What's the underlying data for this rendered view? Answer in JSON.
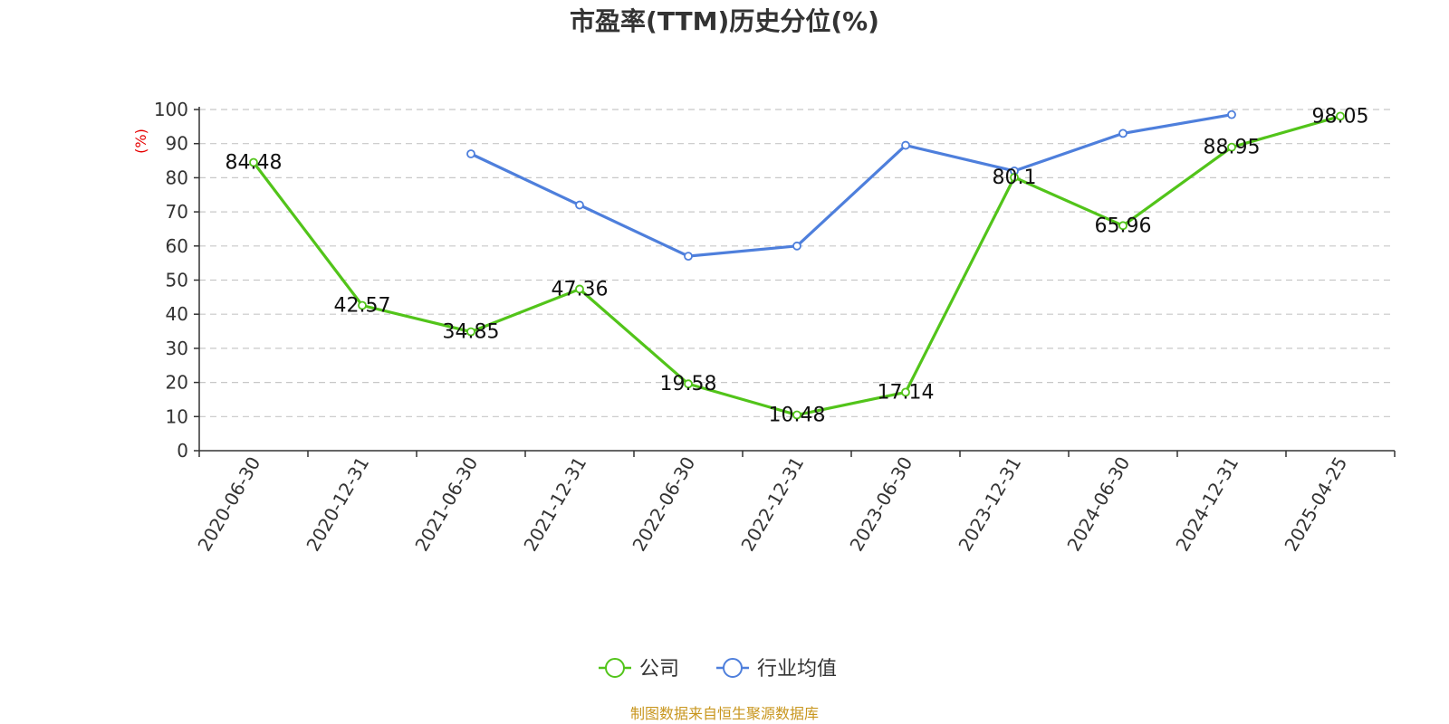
{
  "chart_data": {
    "type": "line",
    "title": "市盈率(TTM)历史分位(%)",
    "ylabel": "(%)",
    "xlabel": "",
    "ylim": [
      0,
      100
    ],
    "yticks": [
      0,
      10,
      20,
      30,
      40,
      50,
      60,
      70,
      80,
      90,
      100
    ],
    "grid": true,
    "legend_position": "bottom-center",
    "categories": [
      "2020-06-30",
      "2020-12-31",
      "2021-06-30",
      "2021-12-31",
      "2022-06-30",
      "2022-12-31",
      "2023-06-30",
      "2023-12-31",
      "2024-06-30",
      "2024-12-31",
      "2025-04-25"
    ],
    "series": [
      {
        "name": "公司",
        "color": "#52c41a",
        "values": [
          84.48,
          42.57,
          34.85,
          47.36,
          19.58,
          10.48,
          17.14,
          80.1,
          65.96,
          88.95,
          98.05
        ],
        "labels": [
          "84.48",
          "42.57",
          "34.85",
          "47.36",
          "19.58",
          "10.48",
          "17.14",
          "80.1",
          "65.96",
          "88.95",
          "98.05"
        ]
      },
      {
        "name": "行业均值",
        "color": "#4e7fdc",
        "values": [
          null,
          null,
          87.0,
          72.0,
          57.0,
          60.0,
          89.5,
          82.0,
          93.0,
          98.5,
          null
        ]
      }
    ],
    "footer": "制图数据来自恒生聚源数据库"
  }
}
